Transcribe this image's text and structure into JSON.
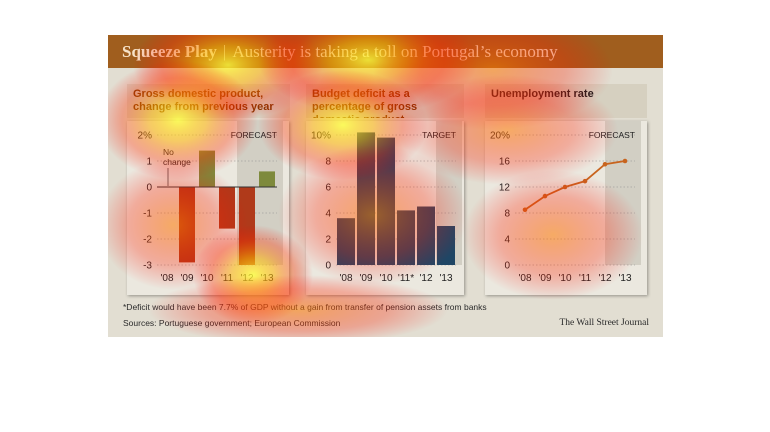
{
  "title": {
    "main": "Squeeze Play",
    "separator": "|",
    "subtitle": "Austerity is taking a toll on Portugal’s economy"
  },
  "chart_data": [
    {
      "type": "bar",
      "title": "Gross domestic product, change from previous year",
      "categories": [
        "'08",
        "'09",
        "'10",
        "'11",
        "'12",
        "'13"
      ],
      "values": [
        0.0,
        -2.9,
        1.4,
        -1.6,
        -3.0,
        0.6
      ],
      "value_kinds": [
        "actual",
        "actual",
        "actual",
        "actual",
        "forecast",
        "forecast"
      ],
      "ylim": [
        -3,
        2
      ],
      "yticks": [
        "-3",
        "-2",
        "-1",
        "0",
        "1",
        "2%"
      ],
      "region_label": "FORECAST",
      "annotation": "No change",
      "colors": {
        "negative": "#b03a1a",
        "positive": "#7e8a3c",
        "forecast_shade": "#d2cfc4"
      }
    },
    {
      "type": "bar",
      "title": "Budget deficit as a percentage of gross domestic product",
      "categories": [
        "'08",
        "'09",
        "'10",
        "'11*",
        "'12",
        "'13"
      ],
      "values": [
        3.6,
        10.2,
        9.8,
        4.2,
        4.5,
        3.0
      ],
      "ylim": [
        0,
        10
      ],
      "yticks": [
        "0",
        "2",
        "4",
        "6",
        "8",
        "10%"
      ],
      "region_label": "TARGET",
      "colors": {
        "bar": "#1f4665",
        "target_shade": "#d2cfc4"
      }
    },
    {
      "type": "line",
      "title": "Unemployment rate",
      "x": [
        "'08",
        "'09",
        "'10",
        "'11",
        "'12",
        "'13"
      ],
      "values": [
        8.5,
        10.6,
        12.0,
        12.9,
        15.5,
        16.0
      ],
      "ylim": [
        0,
        20
      ],
      "yticks": [
        "0",
        "4",
        "8",
        "12",
        "16",
        "20%"
      ],
      "region_label": "FORECAST",
      "colors": {
        "line": "#c8641e",
        "forecast_shade": "#d2cfc4"
      }
    }
  ],
  "footnote": "*Deficit would have been 7.7% of GDP without a gain from transfer of pension assets from banks",
  "sources": "Sources: Portuguese government; European Commission",
  "credit": "The Wall Street Journal"
}
